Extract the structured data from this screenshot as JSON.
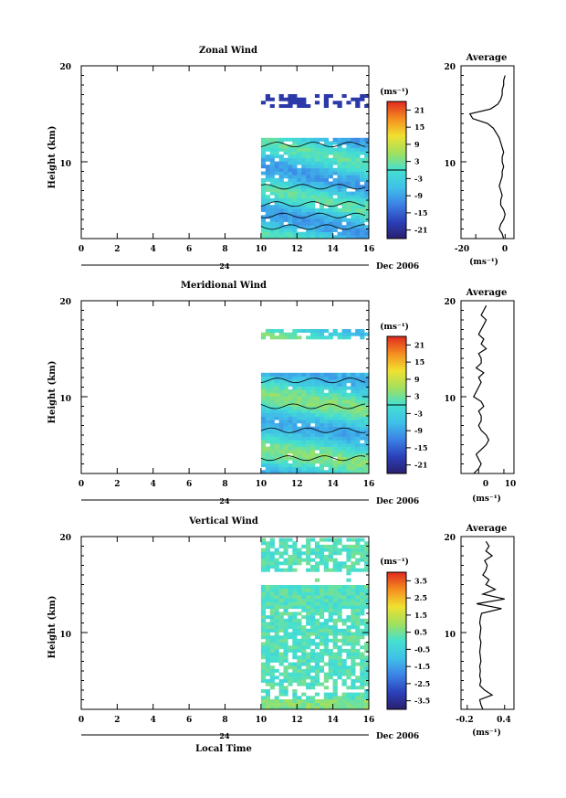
{
  "chart_data": [
    {
      "type": "heatmap",
      "title": "Zonal Wind",
      "ylabel": "Height (km)",
      "yticks": [
        "20",
        "10"
      ],
      "xticks": [
        "0",
        "2",
        "4",
        "6",
        "8",
        "10",
        "12",
        "14",
        "16"
      ],
      "xlim": [
        0,
        16
      ],
      "ylim": [
        2,
        20
      ],
      "date_axis": {
        "tick": "24",
        "label": "Dec 2006"
      },
      "colorbar": {
        "unit": "(ms⁻¹)",
        "ticks": [
          "21",
          "15",
          "9",
          "3",
          "-3",
          "-9",
          "-15",
          "-21"
        ],
        "range": [
          -24,
          24
        ]
      },
      "data_extent": {
        "time": [
          10.0,
          15.8
        ],
        "height": [
          2.0,
          16.8
        ]
      },
      "profile": {
        "title": "Average",
        "xticks": [
          "-20",
          "0"
        ],
        "xlim": [
          -30,
          6
        ],
        "yticks": [
          "20",
          "10"
        ],
        "xlabel": "(ms⁻¹)",
        "h": [
          2,
          2.5,
          3,
          3.5,
          4,
          4.5,
          5,
          5.5,
          6,
          6.5,
          7,
          7.5,
          8,
          8.5,
          9,
          9.5,
          10,
          10.5,
          11,
          11.5,
          12,
          12.5,
          13,
          13.5,
          14,
          14.5,
          15,
          15.5,
          16,
          16.5,
          17,
          17.5,
          18,
          18.5,
          19
        ],
        "u": [
          -1,
          -2,
          -4,
          -3,
          -1,
          0,
          -1,
          -3,
          -3,
          -2,
          -3,
          -4,
          -3,
          -2,
          -2,
          -1,
          -2,
          -2,
          -1,
          -2,
          -3,
          -4,
          -6,
          -8,
          -12,
          -22,
          -24,
          -10,
          -5,
          -3,
          -2,
          -2,
          -1,
          -1,
          0
        ]
      }
    },
    {
      "type": "heatmap",
      "title": "Meridional Wind",
      "ylabel": "Height (km)",
      "yticks": [
        "20",
        "10"
      ],
      "xticks": [
        "0",
        "2",
        "4",
        "6",
        "8",
        "10",
        "12",
        "14",
        "16"
      ],
      "xlim": [
        0,
        16
      ],
      "ylim": [
        2,
        20
      ],
      "date_axis": {
        "tick": "24",
        "label": "Dec 2006"
      },
      "colorbar": {
        "unit": "(ms⁻¹)",
        "ticks": [
          "21",
          "15",
          "9",
          "3",
          "-3",
          "-9",
          "-15",
          "-21"
        ],
        "range": [
          -24,
          24
        ]
      },
      "data_extent": {
        "time": [
          10.0,
          15.8
        ],
        "height": [
          2.0,
          17.0
        ]
      },
      "profile": {
        "title": "Average",
        "xticks": [
          "0",
          "10"
        ],
        "xlim": [
          -7,
          14
        ],
        "yticks": [
          "20",
          "10"
        ],
        "xlabel": "(ms⁻¹)",
        "h": [
          2,
          2.5,
          3,
          3.5,
          4,
          4.5,
          5,
          5.5,
          6,
          6.5,
          7,
          7.5,
          8,
          8.5,
          9,
          9.5,
          10,
          10.5,
          11,
          11.5,
          12,
          12.5,
          13,
          13.5,
          14,
          14.5,
          15,
          15.5,
          16,
          16.5,
          17,
          17.5,
          18,
          18.5,
          19,
          19.5
        ],
        "v": [
          -2,
          0,
          1,
          0,
          -1,
          1,
          3,
          4,
          3,
          1,
          0,
          1,
          1,
          0,
          2,
          1,
          -2,
          -1,
          0,
          1,
          0,
          2,
          -1,
          1,
          1,
          0,
          3,
          1,
          2,
          0,
          1,
          2,
          3,
          1,
          2,
          3
        ]
      }
    },
    {
      "type": "heatmap",
      "title": "Vertical Wind",
      "ylabel": "Height (km)",
      "xlabel": "Local Time",
      "yticks": [
        "20",
        "10"
      ],
      "xticks": [
        "0",
        "2",
        "4",
        "6",
        "8",
        "10",
        "12",
        "14",
        "16"
      ],
      "xlim": [
        0,
        16
      ],
      "ylim": [
        2,
        20
      ],
      "date_axis": {
        "tick": "24",
        "label": "Dec 2006"
      },
      "colorbar": {
        "unit": "(ms⁻¹)",
        "ticks": [
          "3.5",
          "2.5",
          "1.5",
          "0.5",
          "-0.5",
          "-1.5",
          "-2.5",
          "-3.5"
        ],
        "range": [
          -4,
          4
        ]
      },
      "data_extent": {
        "time": [
          10.0,
          15.8
        ],
        "height": [
          2.0,
          19.7
        ]
      },
      "profile": {
        "title": "Average",
        "xticks": [
          "-0.2",
          "0.4"
        ],
        "xlim": [
          -0.3,
          0.55
        ],
        "yticks": [
          "20",
          "10"
        ],
        "xlabel": "(ms⁻¹)",
        "h": [
          2,
          2.5,
          3,
          3.5,
          4,
          4.5,
          5,
          5.5,
          6,
          6.5,
          7,
          7.5,
          8,
          8.5,
          9,
          9.5,
          10,
          10.5,
          11,
          11.5,
          12,
          12.5,
          13,
          13.5,
          14,
          14.5,
          15,
          15.5,
          16,
          16.5,
          17,
          17.5,
          18,
          18.5,
          19,
          19.5
        ],
        "w": [
          0.05,
          0.02,
          0.0,
          0.2,
          0.08,
          0.0,
          0.02,
          0.0,
          0.01,
          0.0,
          0.02,
          0.01,
          0.0,
          0.01,
          0.02,
          0.0,
          0.01,
          0.02,
          0.0,
          0.01,
          0.03,
          0.35,
          -0.05,
          0.4,
          0.05,
          0.25,
          0.1,
          0.15,
          0.05,
          0.1,
          0.12,
          0.08,
          0.2,
          0.1,
          0.15,
          0.1
        ]
      }
    }
  ]
}
